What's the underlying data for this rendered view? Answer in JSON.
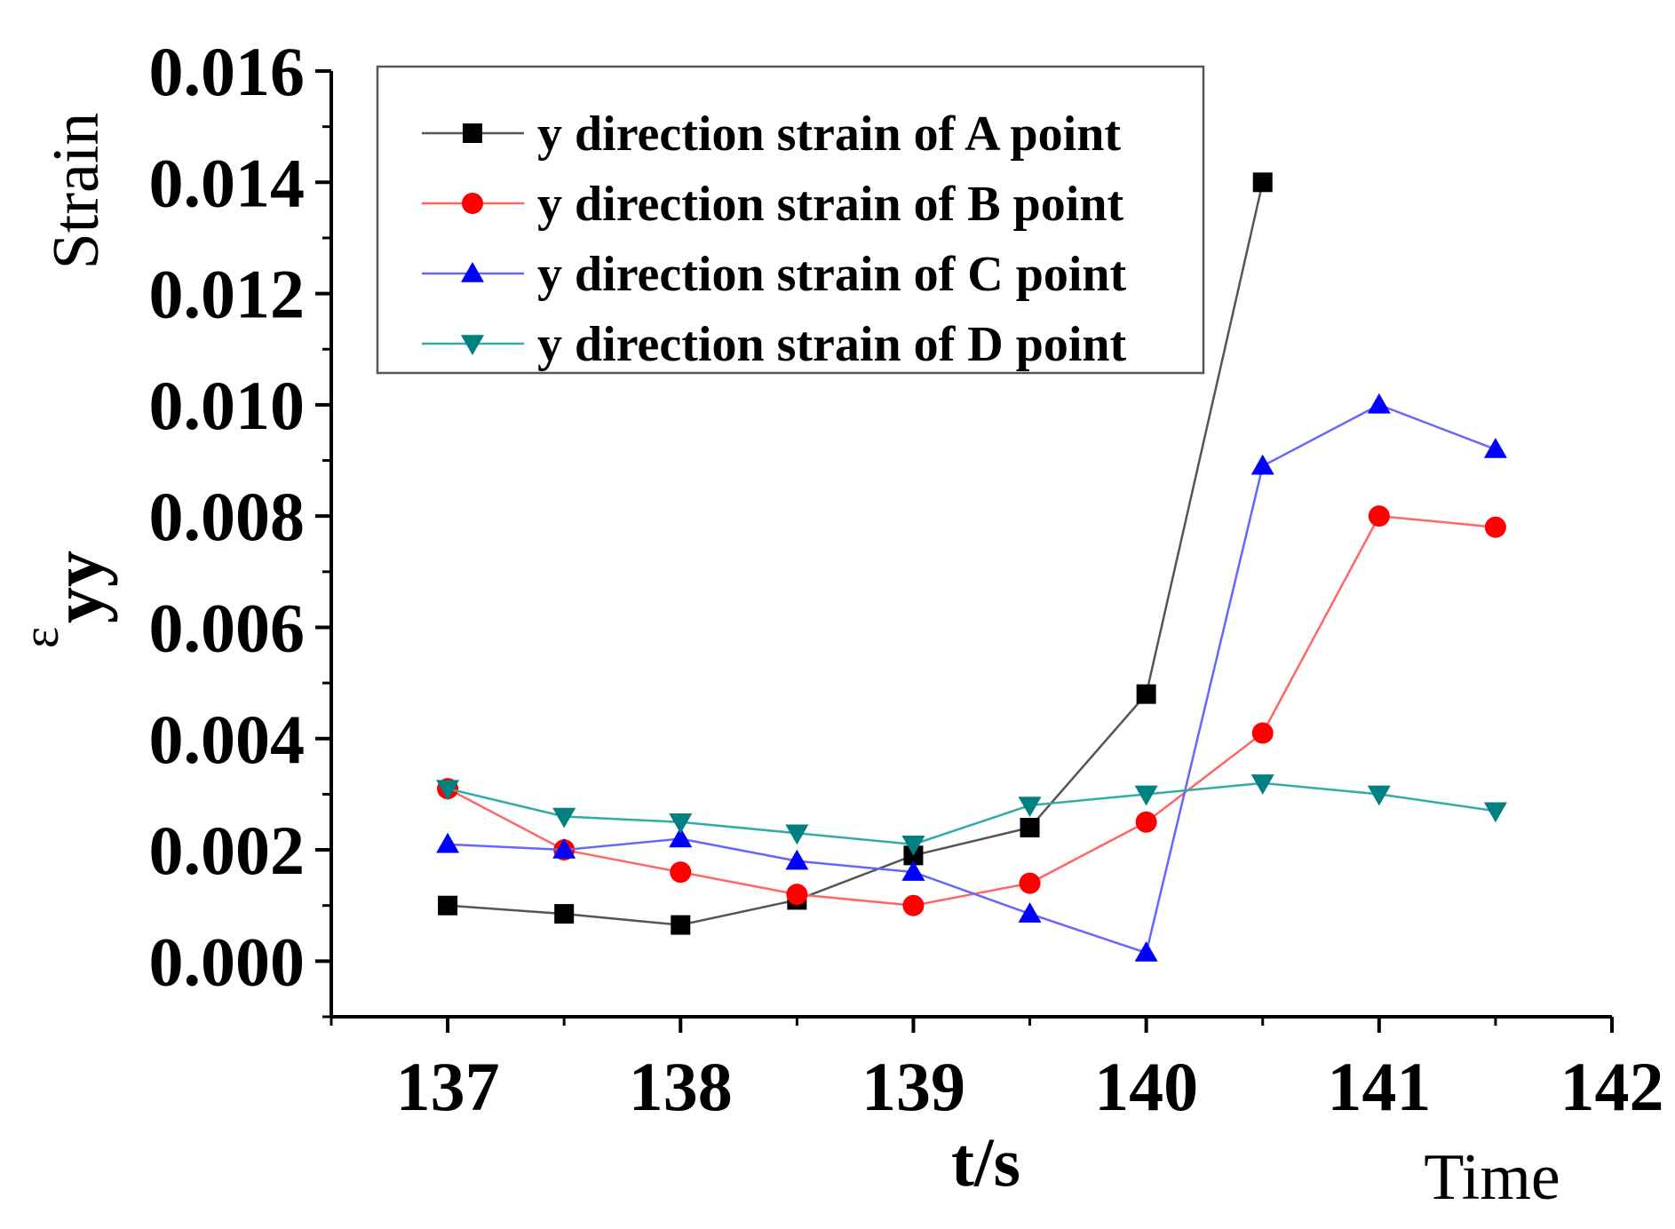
{
  "chart_data": {
    "type": "line",
    "title": "",
    "xlabel": "t/s",
    "ylabel_symbol": "ε",
    "ylabel_subscript": "yy",
    "side_label_y": "Strain",
    "side_label_x": "Time",
    "xlim": [
      136.5,
      142
    ],
    "ylim": [
      -0.001,
      0.016
    ],
    "x_ticks": [
      137,
      138,
      139,
      140,
      141,
      142
    ],
    "y_ticks": [
      0.0,
      0.002,
      0.004,
      0.006,
      0.008,
      0.01,
      0.012,
      0.014,
      0.016
    ],
    "y_tick_labels": [
      "0.000",
      "0.002",
      "0.004",
      "0.006",
      "0.008",
      "0.010",
      "0.012",
      "0.014",
      "0.016"
    ],
    "x_tick_labels": [
      "137",
      "138",
      "139",
      "140",
      "141",
      "142"
    ],
    "legend_position": "top-left",
    "series": [
      {
        "name": "y direction strain of A point",
        "color": "#000000",
        "line_color": "#555555",
        "marker": "square",
        "x": [
          137,
          137.5,
          138,
          138.5,
          139,
          139.5,
          140,
          140.5
        ],
        "values": [
          0.001,
          0.00085,
          0.00065,
          0.0011,
          0.0019,
          0.0024,
          0.0048,
          0.014
        ]
      },
      {
        "name": "y direction strain of B point",
        "color": "#ff0000",
        "line_color": "#ff6666",
        "marker": "circle",
        "x": [
          137,
          137.5,
          138,
          138.5,
          139,
          139.5,
          140,
          140.5,
          141,
          141.5
        ],
        "values": [
          0.0031,
          0.002,
          0.0016,
          0.0012,
          0.001,
          0.0014,
          0.0025,
          0.0041,
          0.008,
          0.0078
        ]
      },
      {
        "name": "y direction strain of C point",
        "color": "#0000ff",
        "line_color": "#6666ff",
        "marker": "triangle-up",
        "x": [
          137,
          137.5,
          138,
          138.5,
          139,
          139.5,
          140,
          140.5,
          141,
          141.5
        ],
        "values": [
          0.0021,
          0.002,
          0.0022,
          0.0018,
          0.0016,
          0.00085,
          0.00015,
          0.0089,
          0.01,
          0.0092
        ]
      },
      {
        "name": "y direction strain of D point",
        "color": "#008080",
        "line_color": "#33aaaa",
        "marker": "triangle-down",
        "x": [
          137,
          137.5,
          138,
          138.5,
          139,
          139.5,
          140,
          140.5,
          141,
          141.5
        ],
        "values": [
          0.0031,
          0.0026,
          0.0025,
          0.0023,
          0.0021,
          0.0028,
          0.003,
          0.0032,
          0.003,
          0.0027
        ]
      }
    ]
  }
}
